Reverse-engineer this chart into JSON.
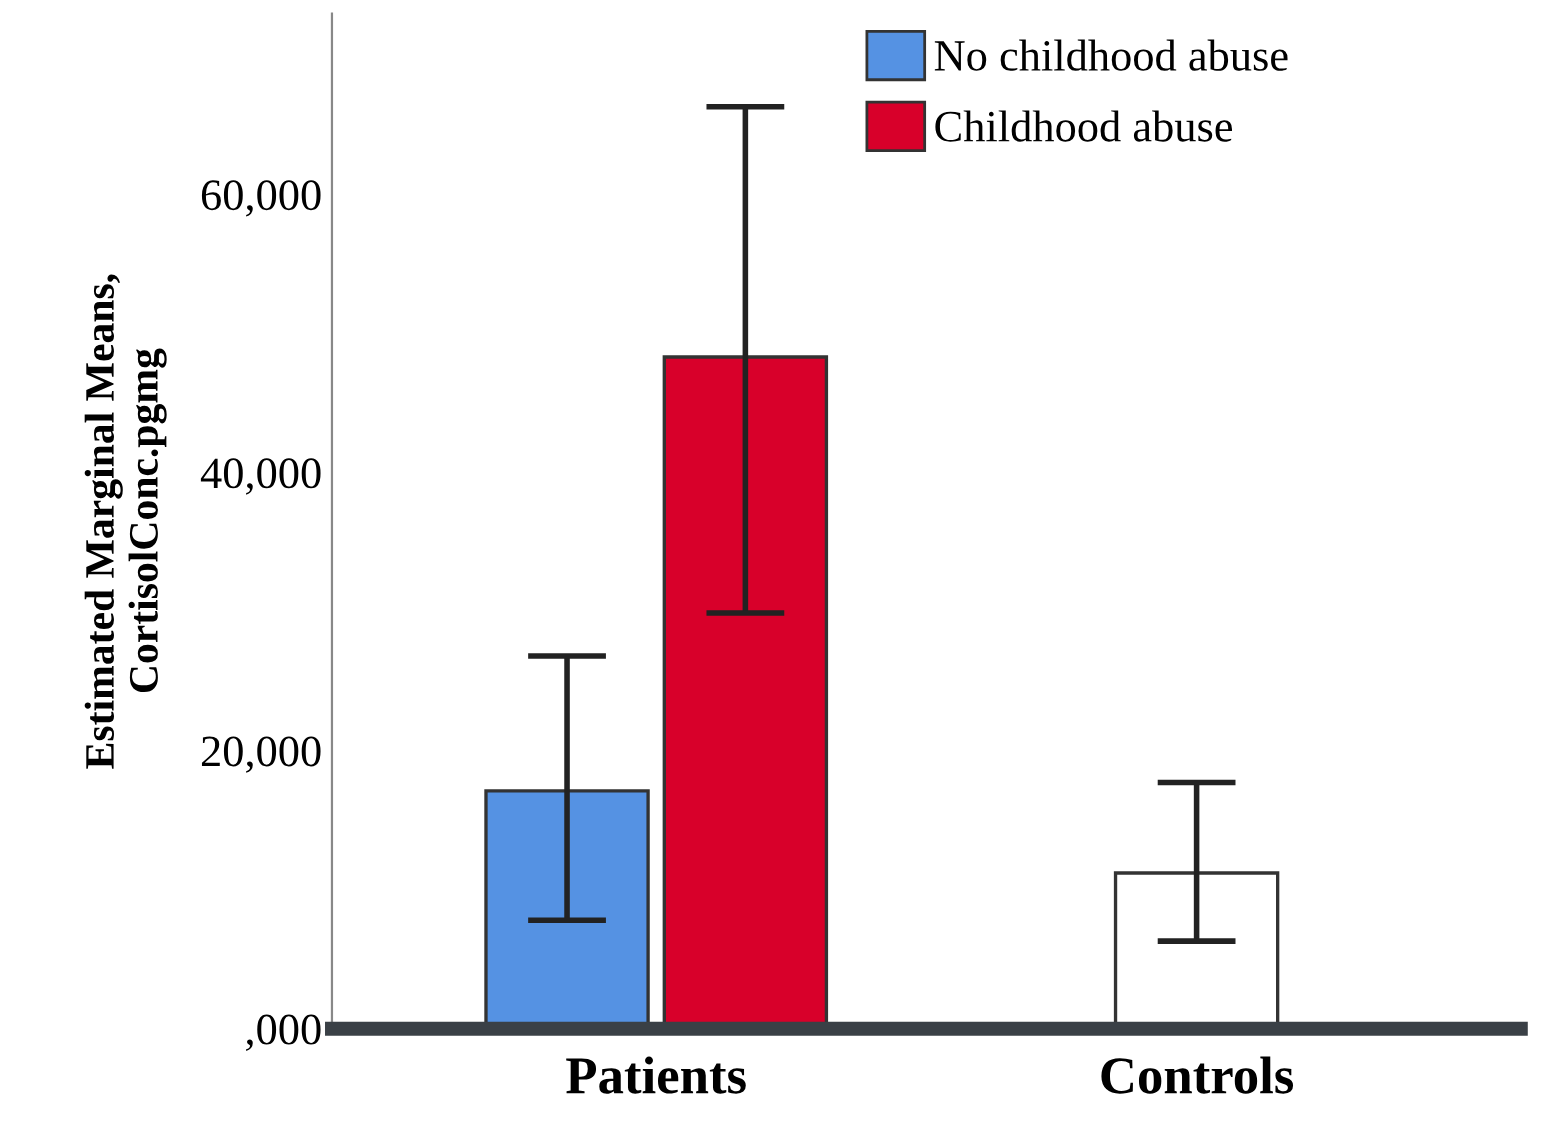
{
  "chart_data": {
    "type": "bar",
    "ylabel": "Estimated Marginal Means,\nCortisolConc.pgmg",
    "categories": [
      "Patients",
      "Controls"
    ],
    "series": [
      {
        "name": "No childhood abuse",
        "color": "#5592e3",
        "colors": [
          "#5592e3",
          "#ffffff"
        ],
        "values": [
          17100,
          11200
        ],
        "errors": [
          [
            7800,
            26800
          ],
          [
            6300,
            17700
          ]
        ]
      },
      {
        "name": "Childhood abuse",
        "color": "#d8002a",
        "values": [
          48300,
          null
        ],
        "errors": [
          [
            29900,
            66300
          ],
          null
        ]
      }
    ],
    "ylim": [
      0,
      73000
    ],
    "yticks": [
      {
        "value": 0,
        "label": ",000"
      },
      {
        "value": 20000,
        "label": "20,000"
      },
      {
        "value": 40000,
        "label": "40,000"
      },
      {
        "value": 60000,
        "label": "60,000"
      }
    ],
    "legend": "top right",
    "grid": false
  }
}
